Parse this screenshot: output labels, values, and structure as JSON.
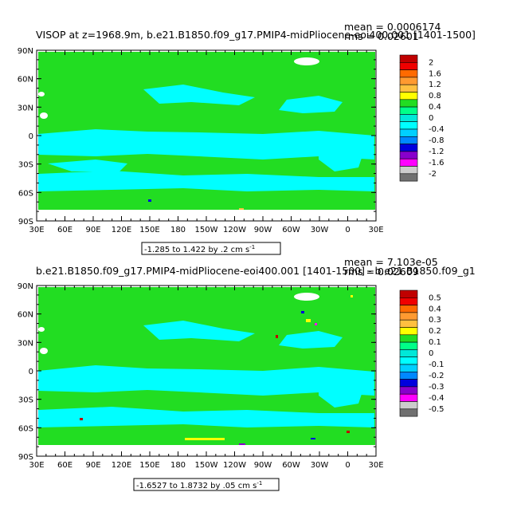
{
  "chart_data": [
    {
      "type": "heatmap",
      "title": "VISOP at z=1968.9m, b.e21.B1850.f09_g17.PMIP4-midPliocene-eoi400.001 [1401-1500]",
      "stat_mean": "mean = 0.0006174",
      "stat_rms": "rms = 0.02601",
      "contour_info": "-1.285 to 1.422 by .2 cm s",
      "contour_unit_exp": "-1",
      "colorbar_labels": [
        "2",
        "1.6",
        "1.2",
        "0.8",
        "0.4",
        "0",
        "-0.4",
        "-0.8",
        "-1.2",
        "-1.6",
        "-2"
      ],
      "xticks": [
        "30E",
        "60E",
        "90E",
        "120E",
        "150E",
        "180",
        "150W",
        "120W",
        "90W",
        "60W",
        "30W",
        "0",
        "30E"
      ],
      "yticks": [
        "90N",
        "60N",
        "30N",
        "0",
        "30S",
        "60S",
        "90S"
      ]
    },
    {
      "type": "heatmap",
      "title": "b.e21.B1850.f09_g17.PMIP4-midPliocene-eoi400.001 [1401-1500] - b.e21.B1850.f09_g1",
      "stat_mean": "mean = 7.103e-05",
      "stat_rms": "rms = 0.02609",
      "contour_info": "-1.6527 to 1.8732 by .05 cm s",
      "contour_unit_exp": "-1",
      "colorbar_labels": [
        "0.5",
        "0.4",
        "0.3",
        "0.2",
        "0.1",
        "0",
        "-0.1",
        "-0.2",
        "-0.3",
        "-0.4",
        "-0.5"
      ],
      "xticks": [
        "30E",
        "60E",
        "90E",
        "120E",
        "150E",
        "180",
        "150W",
        "120W",
        "90W",
        "60W",
        "30W",
        "0",
        "30E"
      ],
      "yticks": [
        "90N",
        "60N",
        "30N",
        "0",
        "30S",
        "60S",
        "90S"
      ]
    }
  ],
  "colors": {
    "colorbar": [
      "#c00000",
      "#f00000",
      "#ff6a00",
      "#ff9a30",
      "#ffc040",
      "#ffff00",
      "#22dd22",
      "#00ff88",
      "#00e8d8",
      "#00ffff",
      "#00d0ff",
      "#0088ff",
      "#0000dd",
      "#8800cc",
      "#ff00ff",
      "#cccccc",
      "#707070"
    ],
    "ocean_green": "#22dd22",
    "ocean_cyan": "#00ffff",
    "land": "#ffffff"
  }
}
